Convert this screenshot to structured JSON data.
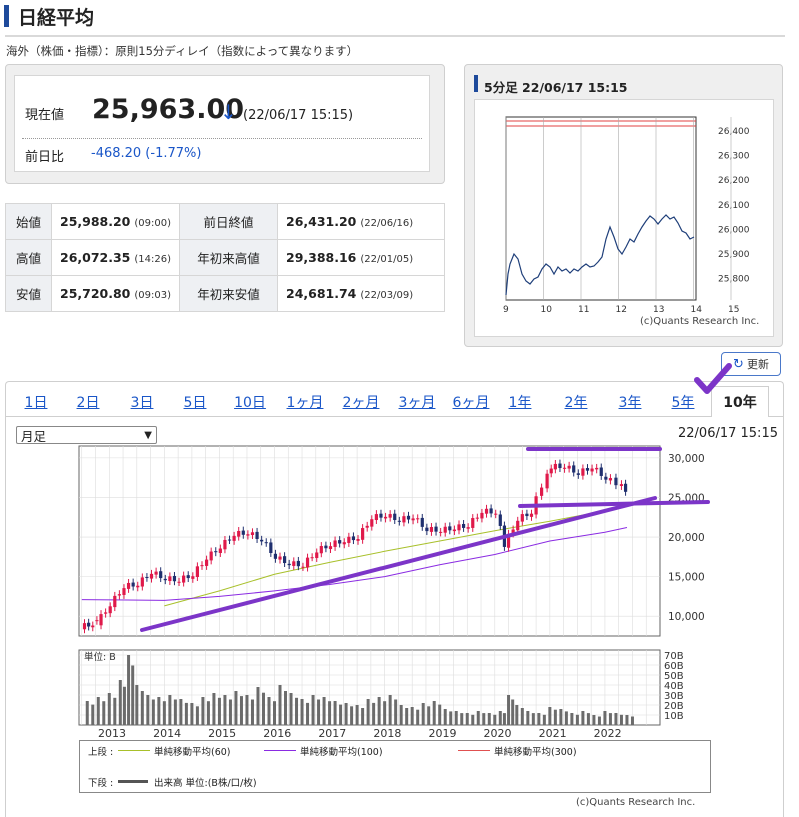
{
  "page": {
    "title": "日経平均",
    "subtitle": "海外（株価・指標）：原則15分ディレイ（指数によって異なります）"
  },
  "current": {
    "label": "現在値",
    "value": "25,963.00",
    "arrow": "↓",
    "time": "(22/06/17 15:15)",
    "change_label": "前日比",
    "change": "-468.20 (-1.77%)"
  },
  "stats": [
    {
      "l1": "始値",
      "v1": "25,988.20",
      "t1": "(09:00)",
      "l2": "前日終値",
      "v2": "26,431.20",
      "t2": "(22/06/16)"
    },
    {
      "l1": "高値",
      "v1": "26,072.35",
      "t1": "(14:26)",
      "l2": "年初来高値",
      "v2": "29,388.16",
      "t2": "(22/01/05)"
    },
    {
      "l1": "安値",
      "v1": "25,720.80",
      "t1": "(09:03)",
      "l2": "年初来安値",
      "v2": "24,681.74",
      "t2": "(22/03/09)"
    }
  ],
  "mini_chart": {
    "title": "5分足 22/06/17 15:15",
    "credit": "(c)Quants Research Inc.",
    "y_ticks": [
      "26,400",
      "26,300",
      "26,200",
      "26,100",
      "26,000",
      "25,900",
      "25,800"
    ],
    "x_ticks": [
      "9",
      "10",
      "11",
      "12",
      "13",
      "14",
      "15"
    ],
    "line_color": "#1f3f7a"
  },
  "refresh": {
    "label": "更新",
    "icon": "refresh-icon"
  },
  "tabs": [
    {
      "label": "1日"
    },
    {
      "label": "2日"
    },
    {
      "label": "3日"
    },
    {
      "label": "5日"
    },
    {
      "label": "10日"
    },
    {
      "label": "1ヶ月"
    },
    {
      "label": "2ヶ月"
    },
    {
      "label": "3ヶ月"
    },
    {
      "label": "6ヶ月"
    },
    {
      "label": "1年"
    },
    {
      "label": "2年"
    },
    {
      "label": "3年"
    },
    {
      "label": "5年"
    },
    {
      "label": "10年",
      "active": true
    }
  ],
  "period_select": {
    "value": "月足"
  },
  "chart_time": "22/06/17 15:15",
  "chart_data": {
    "type": "line",
    "upper_y_ticks": [
      "30,000",
      "25,000",
      "20,000",
      "15,000",
      "10,000"
    ],
    "upper_ylim": [
      7500,
      31500
    ],
    "lower_unit": "単位: B",
    "lower_y_ticks": [
      "70B",
      "60B",
      "50B",
      "40B",
      "30B",
      "20B",
      "10B"
    ],
    "lower_ylim": [
      0,
      75
    ],
    "x_ticks": [
      "2013",
      "2014",
      "2015",
      "2016",
      "2017",
      "2018",
      "2019",
      "2020",
      "2021",
      "2022"
    ],
    "series": [
      {
        "name": "単純移動平均(60)",
        "color": "#a8c02a",
        "x": [
          2014.0,
          2015.0,
          2016.0,
          2017.0,
          2018.0,
          2019.0,
          2020.0,
          2021.0,
          2022.0,
          2022.4
        ],
        "values": [
          11300,
          13200,
          15300,
          16800,
          18200,
          19500,
          20800,
          22000,
          23300,
          24000
        ]
      },
      {
        "name": "単純移動平均(100)",
        "color": "#8a2be2",
        "x": [
          2012.5,
          2014.0,
          2015.0,
          2016.0,
          2017.0,
          2018.0,
          2019.0,
          2020.0,
          2021.0,
          2022.0,
          2022.4
        ],
        "values": [
          12100,
          12000,
          12500,
          13200,
          14000,
          15000,
          16500,
          17800,
          19500,
          20600,
          21200
        ]
      },
      {
        "name": "単純移動平均(300)",
        "color": "#e05050",
        "x": [],
        "values": []
      }
    ],
    "monthly_close": {
      "x": [
        2012.55,
        2012.85,
        2013.1,
        2013.35,
        2013.6,
        2013.85,
        2014.1,
        2014.35,
        2014.6,
        2014.85,
        2015.1,
        2015.35,
        2015.6,
        2015.85,
        2016.1,
        2016.35,
        2016.6,
        2016.85,
        2017.1,
        2017.35,
        2017.6,
        2017.85,
        2018.1,
        2018.35,
        2018.6,
        2018.85,
        2019.1,
        2019.35,
        2019.6,
        2019.85,
        2020.1,
        2020.25,
        2020.5,
        2020.75,
        2020.95,
        2021.1,
        2021.35,
        2021.6,
        2021.85,
        2022.1,
        2022.3,
        2022.45
      ],
      "values": [
        8700,
        9200,
        11500,
        13800,
        14100,
        15600,
        14800,
        14600,
        15300,
        17400,
        18800,
        20400,
        20600,
        19700,
        17500,
        16700,
        16500,
        18300,
        19100,
        19600,
        20000,
        22500,
        22800,
        22200,
        22600,
        21000,
        20900,
        21200,
        21500,
        23300,
        23200,
        19000,
        22300,
        23200,
        26500,
        28900,
        29000,
        28100,
        28900,
        27500,
        26800,
        25963
      ]
    },
    "volume": {
      "x": [
        2012.6,
        2012.8,
        2013.0,
        2013.2,
        2013.35,
        2013.5,
        2013.7,
        2013.9,
        2014.1,
        2014.3,
        2014.5,
        2014.7,
        2014.9,
        2015.1,
        2015.3,
        2015.5,
        2015.7,
        2015.9,
        2016.1,
        2016.3,
        2016.5,
        2016.7,
        2016.9,
        2017.1,
        2017.3,
        2017.5,
        2017.7,
        2017.9,
        2018.1,
        2018.3,
        2018.5,
        2018.7,
        2018.9,
        2019.1,
        2019.3,
        2019.5,
        2019.7,
        2019.9,
        2020.1,
        2020.25,
        2020.4,
        2020.6,
        2020.8,
        2021.0,
        2021.2,
        2021.4,
        2021.6,
        2021.8,
        2022.0,
        2022.2,
        2022.4
      ],
      "values": [
        24,
        28,
        32,
        45,
        70,
        40,
        30,
        28,
        30,
        26,
        22,
        28,
        32,
        30,
        34,
        30,
        38,
        28,
        40,
        32,
        26,
        30,
        28,
        24,
        22,
        20,
        26,
        28,
        30,
        20,
        18,
        22,
        24,
        16,
        14,
        12,
        14,
        12,
        14,
        30,
        20,
        14,
        12,
        18,
        16,
        12,
        14,
        10,
        14,
        12,
        10
      ]
    }
  },
  "legend": {
    "upper_label": "上段 :",
    "lower_label": "下段 :",
    "volume_label": "出来高 単位:(B株/口/枚)"
  },
  "chart_credit": "(c)Quants Research Inc."
}
